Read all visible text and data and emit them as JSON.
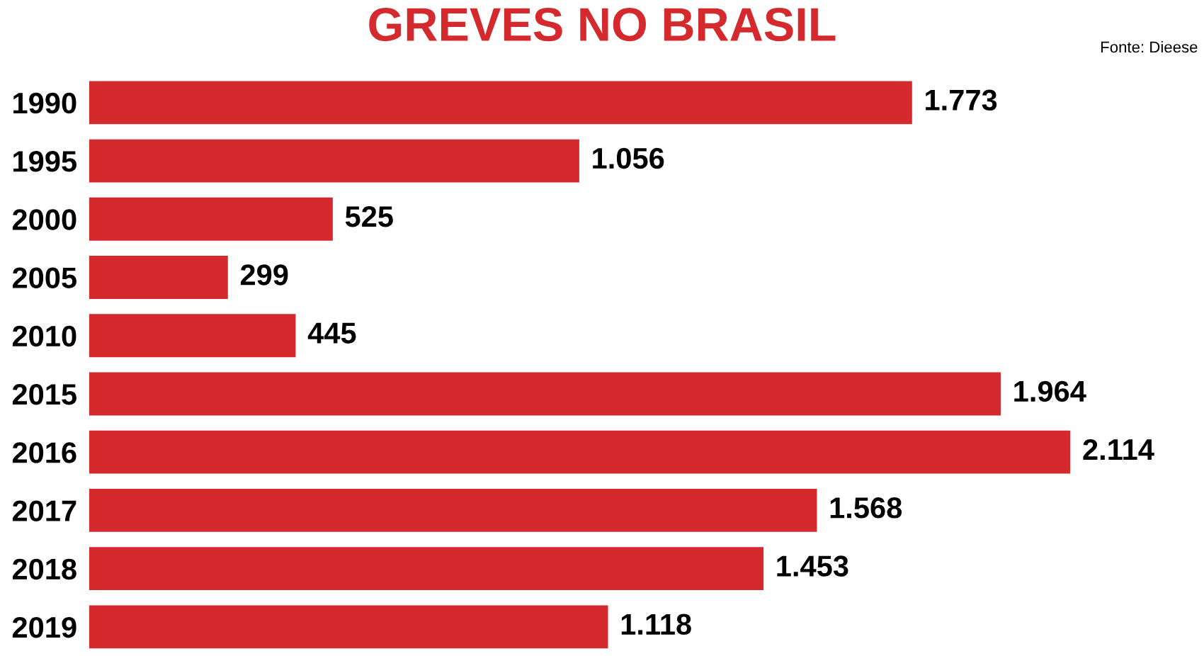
{
  "chart_data": {
    "type": "bar",
    "orientation": "horizontal",
    "title": "GREVES NO BRASIL",
    "annotations": [
      "Fonte: Dieese"
    ],
    "categories": [
      "1990",
      "1995",
      "2000",
      "2005",
      "2010",
      "2015",
      "2016",
      "2017",
      "2018",
      "2019"
    ],
    "values": [
      1773,
      1056,
      525,
      299,
      445,
      1964,
      2114,
      1568,
      1453,
      1118
    ],
    "value_labels": [
      "1.773",
      "1.056",
      "525",
      "299",
      "445",
      "1.964",
      "2.114",
      "1.568",
      "1.453",
      "1.118"
    ],
    "color": "#d42a2e",
    "tick_labels": "y",
    "grid": false,
    "legend": false
  }
}
